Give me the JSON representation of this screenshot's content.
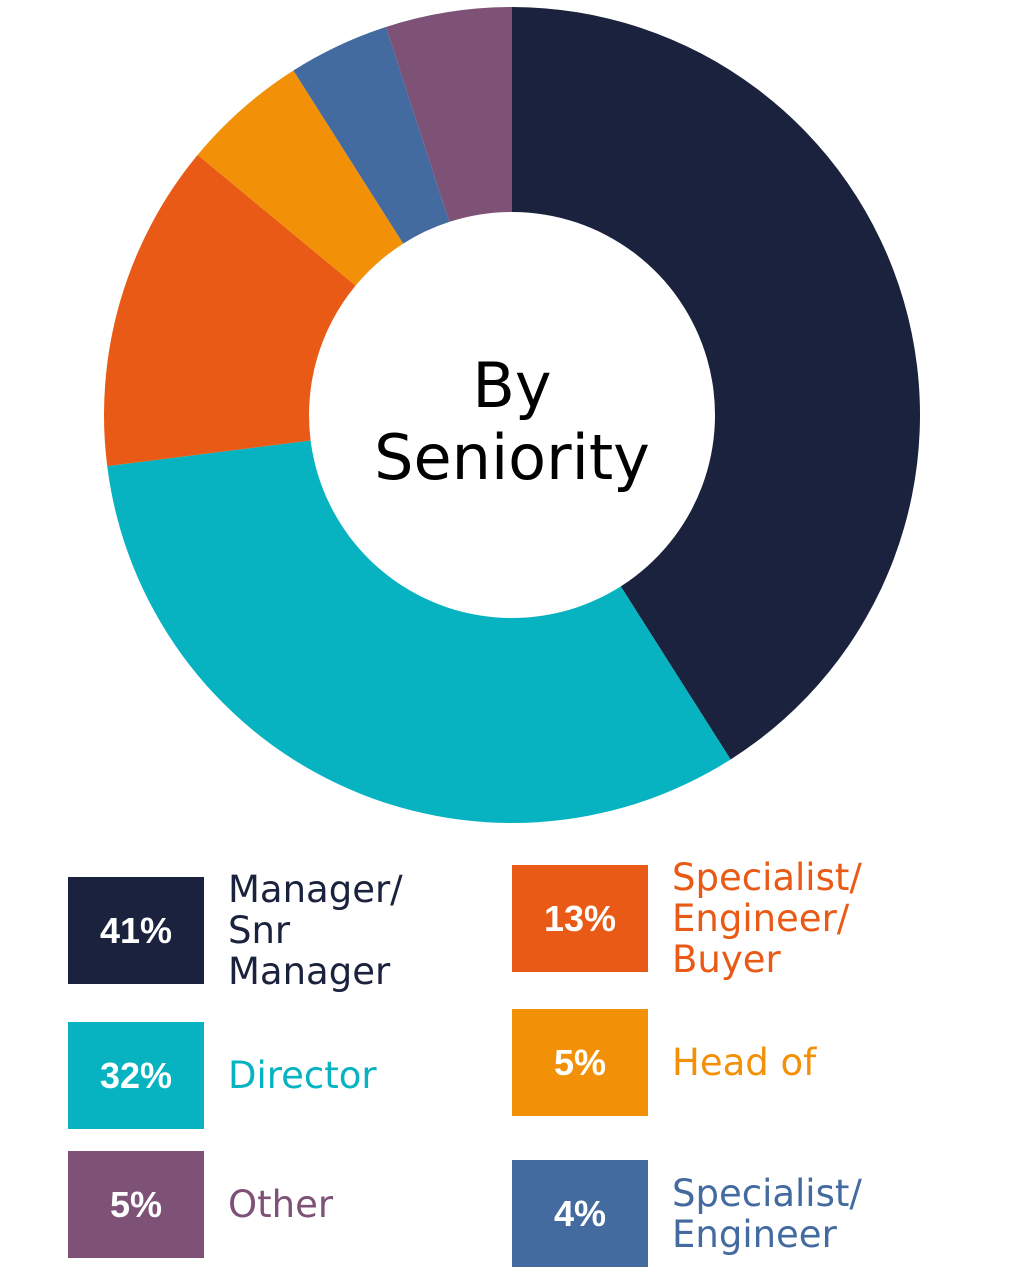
{
  "chart_data": {
    "type": "pie",
    "variant": "donut",
    "title": "By Seniority",
    "title_lines": [
      "By",
      "Seniority"
    ],
    "start": "top, clockwise",
    "slices": [
      {
        "label": "Manager/\nSnr\nManager",
        "value": 41,
        "display": "41%",
        "color": "#1a223d"
      },
      {
        "label": "Director",
        "value": 32,
        "display": "32%",
        "color": "#07b3c1"
      },
      {
        "label": "Specialist/\nEngineer/\nBuyer",
        "value": 13,
        "display": "13%",
        "color": "#e95a16"
      },
      {
        "label": "Head of",
        "value": 5,
        "display": "5%",
        "color": "#f29108"
      },
      {
        "label": "Specialist/\nEngineer",
        "value": 4,
        "display": "4%",
        "color": "#436ba0"
      },
      {
        "label": "Other",
        "value": 5,
        "display": "5%",
        "color": "#7e5277"
      }
    ],
    "legend_placement": "bottom"
  }
}
